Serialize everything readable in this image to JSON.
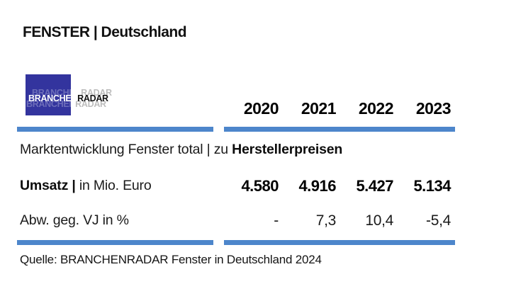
{
  "page": {
    "title": "FENSTER | Deutschland",
    "source": "Quelle: BRANCHENRADAR Fenster in Deutschland 2024"
  },
  "logo": {
    "text_primary": "BRANCHEN",
    "text_secondary": "RADAR"
  },
  "table": {
    "years": [
      "2020",
      "2021",
      "2022",
      "2023"
    ],
    "section": {
      "label_regular": "Marktentwicklung Fenster total | zu ",
      "label_bold": "Herstellerpreisen"
    },
    "rows": [
      {
        "label_bold": "Umsatz | ",
        "label_regular": "in Mio. Euro",
        "values": [
          "4.580",
          "4.916",
          "5.427",
          "5.134"
        ]
      },
      {
        "label_bold": "",
        "label_regular": "Abw. geg. VJ in %",
        "values": [
          "-",
          "7,3",
          "10,4",
          "-5,4"
        ]
      }
    ]
  },
  "colors": {
    "rule_blue": "#4d86cb",
    "logo_blue": "#33349e",
    "text": "#1a1a1a"
  },
  "chart_data": {
    "type": "table",
    "title": "FENSTER | Deutschland",
    "subtitle": "Marktentwicklung Fenster total | zu Herstellerpreisen",
    "categories": [
      "2020",
      "2021",
      "2022",
      "2023"
    ],
    "series": [
      {
        "name": "Umsatz | in Mio. Euro",
        "values": [
          4580,
          4916,
          5427,
          5134
        ]
      },
      {
        "name": "Abw. geg. VJ in %",
        "values": [
          null,
          7.3,
          10.4,
          -5.4
        ]
      }
    ],
    "source": "Quelle: BRANCHENRADAR Fenster in Deutschland 2024"
  }
}
